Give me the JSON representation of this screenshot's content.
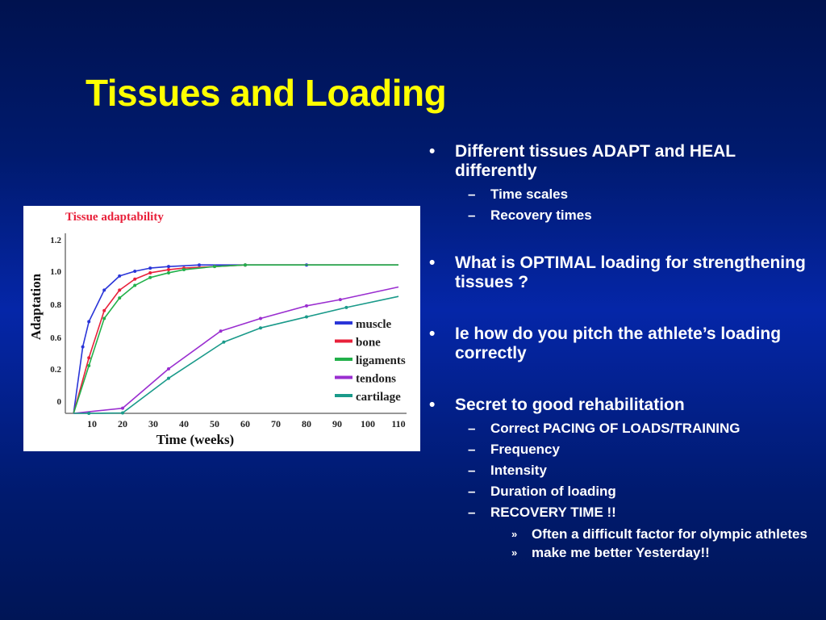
{
  "slide": {
    "title": "Tissues and Loading",
    "title_color": "#ffff00",
    "background_color": "#0a2aa0"
  },
  "bullets": [
    {
      "text": "Different tissues ADAPT  and HEAL  differently",
      "sub": [
        "Time scales",
        "Recovery times"
      ]
    },
    {
      "text": "What is OPTIMAL loading for strengthening tissues ?",
      "sub": []
    },
    {
      "text": "Ie how do you pitch the athlete’s loading correctly",
      "sub": []
    },
    {
      "text": "Secret to good rehabilitation",
      "sub": [
        "Correct  PACING OF LOADS/TRAINING",
        "Frequency",
        "Intensity",
        "Duration of loading",
        "RECOVERY TIME !!"
      ],
      "subsub": [
        "Often a difficult factor for olympic athletes",
        "make me better Yesterday!!"
      ]
    }
  ],
  "markers": {
    "bullet": "•",
    "dash": "–",
    "raquo": "»"
  },
  "chart_data": {
    "type": "line",
    "title": "Tissue adaptability",
    "title_color": "#e8203a",
    "xlabel": "Time (weeks)",
    "ylabel": "Adaptation",
    "xlim": [
      0,
      110
    ],
    "ylim": [
      -0.1,
      1.2
    ],
    "x_ticks": [
      10,
      20,
      30,
      40,
      50,
      60,
      70,
      80,
      90,
      100,
      110
    ],
    "y_ticks": [
      0,
      0.2,
      0.6,
      0.8,
      1.0,
      1.2
    ],
    "y_tick_labels": [
      "0",
      "0.2",
      "0.6",
      "0.8",
      "1.0",
      "1.2"
    ],
    "grid": false,
    "legend_position": "lower right",
    "series": [
      {
        "name": "muscle",
        "color": "#2a35d8",
        "x": [
          4,
          7,
          9,
          14,
          19,
          24,
          29,
          35,
          45,
          60,
          80,
          110
        ],
        "y": [
          -0.1,
          0.52,
          0.68,
          0.88,
          0.97,
          1.0,
          1.02,
          1.03,
          1.04,
          1.04,
          1.04,
          1.04
        ]
      },
      {
        "name": "bone",
        "color": "#e8203a",
        "x": [
          4,
          9,
          14,
          19,
          24,
          29,
          35,
          40,
          50,
          60,
          110
        ],
        "y": [
          -0.1,
          0.45,
          0.75,
          0.88,
          0.95,
          0.99,
          1.01,
          1.02,
          1.03,
          1.04,
          1.04
        ]
      },
      {
        "name": "ligaments",
        "color": "#22b04a",
        "x": [
          4,
          9,
          14,
          19,
          24,
          29,
          35,
          40,
          50,
          60,
          110
        ],
        "y": [
          -0.1,
          0.4,
          0.7,
          0.83,
          0.91,
          0.96,
          0.99,
          1.01,
          1.03,
          1.04,
          1.04
        ]
      },
      {
        "name": "tendons",
        "color": "#9a2ed0",
        "x": [
          4,
          20,
          35,
          52,
          65,
          80,
          91,
          110
        ],
        "y": [
          -0.1,
          0.13,
          0.38,
          0.62,
          0.7,
          0.78,
          0.82,
          0.9
        ]
      },
      {
        "name": "cartilage",
        "color": "#1a9a8a",
        "x": [
          4,
          9,
          20,
          35,
          53,
          65,
          80,
          93,
          110
        ],
        "y": [
          -0.1,
          -0.02,
          0.1,
          0.32,
          0.55,
          0.64,
          0.71,
          0.77,
          0.84
        ]
      }
    ]
  }
}
